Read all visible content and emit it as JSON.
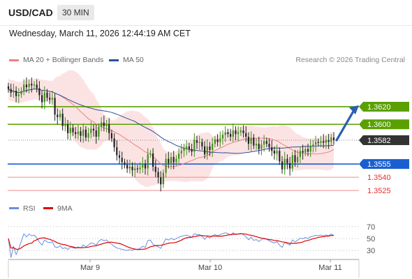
{
  "header": {
    "pair": "USD/CAD",
    "timeframe": "30 MIN"
  },
  "datetime": "Wednesday, March 11, 2026 12:44:19 AM CET",
  "legend": {
    "ma20": {
      "label": "MA 20 + Bollinger Bands",
      "color": "#f08080"
    },
    "ma50": {
      "label": "MA 50",
      "color": "#2b4f9a"
    }
  },
  "credit": "Research © 2026 Trading Central",
  "chart_data": [
    {
      "type": "line",
      "subtype": "candlestick",
      "x_ticks": [
        "Mar 9",
        "Mar 10",
        "Mar 11"
      ],
      "ylim": [
        1.3518,
        1.3665
      ],
      "levels": [
        {
          "value": 1.362,
          "label": "1.3620",
          "kind": "resistance",
          "color": "#5aa000"
        },
        {
          "value": 1.36,
          "label": "1.3600",
          "kind": "resistance",
          "color": "#5aa000"
        },
        {
          "value": 1.3582,
          "label": "1.3582",
          "kind": "current",
          "color": "#333333"
        },
        {
          "value": 1.3555,
          "label": "1.3555",
          "kind": "pivot",
          "color": "#1a5fd0"
        },
        {
          "value": 1.354,
          "label": "1.3540",
          "kind": "support",
          "color": "#e53030"
        },
        {
          "value": 1.3525,
          "label": "1.3525",
          "kind": "support",
          "color": "#e53030"
        }
      ],
      "close": [
        1.364,
        1.3636,
        1.3638,
        1.3632,
        1.3634,
        1.3638,
        1.3645,
        1.3642,
        1.3646,
        1.3644,
        1.3645,
        1.3641,
        1.3633,
        1.3625,
        1.3636,
        1.363,
        1.3628,
        1.363,
        1.3611,
        1.3608,
        1.3612,
        1.3598,
        1.36,
        1.359,
        1.3596,
        1.3591,
        1.3589,
        1.3592,
        1.3587,
        1.3594,
        1.3585,
        1.359,
        1.3595,
        1.3593,
        1.3586,
        1.3597,
        1.3602,
        1.3598,
        1.36,
        1.359,
        1.3584,
        1.3574,
        1.3565,
        1.3562,
        1.3557,
        1.3554,
        1.355,
        1.3552,
        1.3548,
        1.355,
        1.3549,
        1.3551,
        1.3555,
        1.355,
        1.3566,
        1.3567,
        1.3552,
        1.3546,
        1.354,
        1.3532,
        1.3545,
        1.3561,
        1.3556,
        1.3563,
        1.3557,
        1.3561,
        1.3567,
        1.357,
        1.3573,
        1.3575,
        1.3572,
        1.3569,
        1.3582,
        1.3579,
        1.358,
        1.3575,
        1.3566,
        1.3575,
        1.3571,
        1.3578,
        1.3583,
        1.358,
        1.3584,
        1.3588,
        1.3591,
        1.3589,
        1.3586,
        1.3593,
        1.3589,
        1.3591,
        1.3593,
        1.359,
        1.3586,
        1.3578,
        1.3585,
        1.3576,
        1.3578,
        1.3572,
        1.3577,
        1.3581,
        1.3578,
        1.3574,
        1.357,
        1.3567,
        1.357,
        1.3558,
        1.3549,
        1.3561,
        1.3556,
        1.355,
        1.3565,
        1.3557,
        1.3563,
        1.357,
        1.3568,
        1.3572,
        1.3569,
        1.3575,
        1.3577,
        1.358,
        1.3579,
        1.3581,
        1.3579,
        1.3582,
        1.358,
        1.3585,
        1.3582
      ]
    },
    {
      "type": "line",
      "title": "RSI",
      "series": [
        {
          "name": "RSI",
          "color": "#6a8ee0"
        },
        {
          "name": "9MA",
          "color": "#e00000"
        }
      ],
      "y_ticks": [
        70,
        50,
        30
      ],
      "ylim": [
        15,
        85
      ]
    }
  ]
}
